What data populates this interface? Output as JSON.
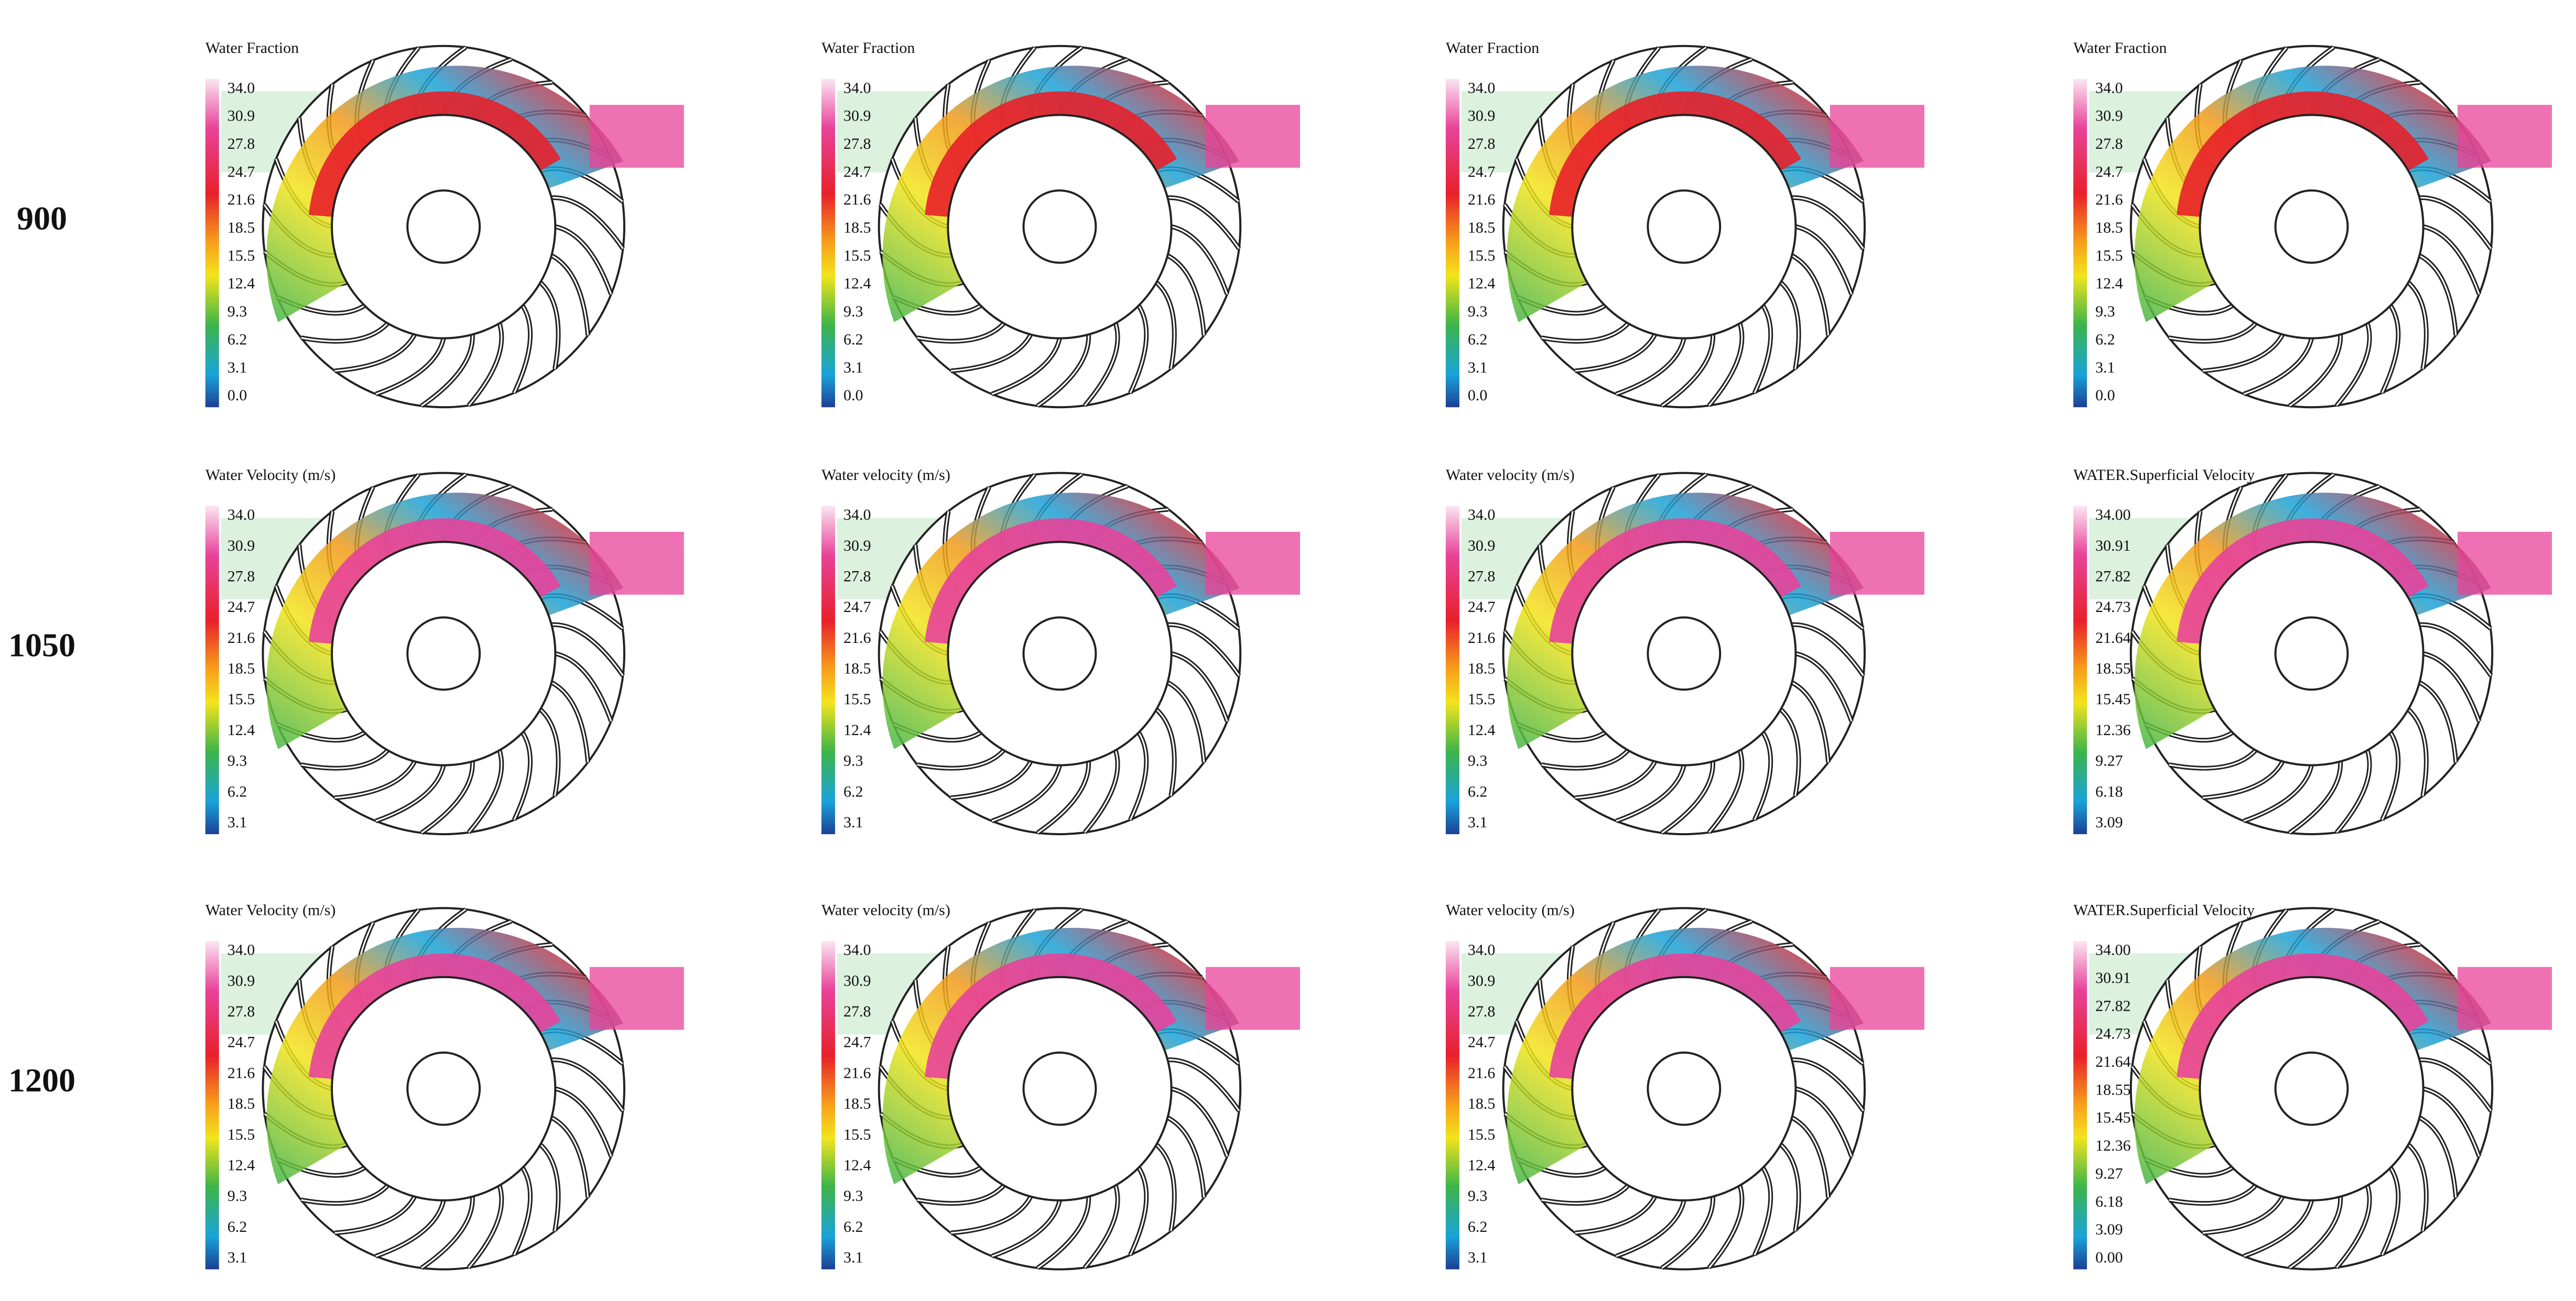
{
  "rows": [
    {
      "label": "900",
      "panels": [
        {
          "title": "Water Fraction",
          "ticks": [
            "34.0",
            "30.9",
            "27.8",
            "24.7",
            "21.6",
            "18.5",
            "15.5",
            "12.4",
            "9.3",
            "6.2",
            "3.1",
            "0.0"
          ]
        },
        {
          "title": "Water Fraction",
          "ticks": [
            "34.0",
            "30.9",
            "27.8",
            "24.7",
            "21.6",
            "18.5",
            "15.5",
            "12.4",
            "9.3",
            "6.2",
            "3.1",
            "0.0"
          ]
        },
        {
          "title": "Water Fraction",
          "ticks": [
            "34.0",
            "30.9",
            "27.8",
            "24.7",
            "21.6",
            "18.5",
            "15.5",
            "12.4",
            "9.3",
            "6.2",
            "3.1",
            "0.0"
          ]
        },
        {
          "title": "Water Fraction",
          "ticks": [
            "34.0",
            "30.9",
            "27.8",
            "24.7",
            "21.6",
            "18.5",
            "15.5",
            "12.4",
            "9.3",
            "6.2",
            "3.1",
            "0.0"
          ]
        }
      ]
    },
    {
      "label": "1050",
      "panels": [
        {
          "title": "Water Velocity (m/s)",
          "ticks": [
            "34.0",
            "30.9",
            "27.8",
            "24.7",
            "21.6",
            "18.5",
            "15.5",
            "12.4",
            "9.3",
            "6.2",
            "3.1"
          ]
        },
        {
          "title": "Water velocity (m/s)",
          "ticks": [
            "34.0",
            "30.9",
            "27.8",
            "24.7",
            "21.6",
            "18.5",
            "15.5",
            "12.4",
            "9.3",
            "6.2",
            "3.1"
          ]
        },
        {
          "title": "Water velocity (m/s)",
          "ticks": [
            "34.0",
            "30.9",
            "27.8",
            "24.7",
            "21.6",
            "18.5",
            "15.5",
            "12.4",
            "9.3",
            "6.2",
            "3.1"
          ]
        },
        {
          "title": "WATER.Superficial Velocity",
          "ticks": [
            "34.00",
            "30.91",
            "27.82",
            "24.73",
            "21.64",
            "18.55",
            "15.45",
            "12.36",
            "9.27",
            "6.18",
            "3.09"
          ]
        }
      ]
    },
    {
      "label": "1200",
      "panels": [
        {
          "title": "Water Velocity (m/s)",
          "ticks": [
            "34.0",
            "30.9",
            "27.8",
            "24.7",
            "21.6",
            "18.5",
            "15.5",
            "12.4",
            "9.3",
            "6.2",
            "3.1"
          ]
        },
        {
          "title": "Water velocity (m/s)",
          "ticks": [
            "34.0",
            "30.9",
            "27.8",
            "24.7",
            "21.6",
            "18.5",
            "15.5",
            "12.4",
            "9.3",
            "6.2",
            "3.1"
          ]
        },
        {
          "title": "Water velocity (m/s)",
          "ticks": [
            "34.0",
            "30.9",
            "27.8",
            "24.7",
            "21.6",
            "18.5",
            "15.5",
            "12.4",
            "9.3",
            "6.2",
            "3.1"
          ]
        },
        {
          "title": "WATER.Superficial Velocity",
          "ticks": [
            "34.00",
            "30.91",
            "27.82",
            "24.73",
            "21.64",
            "18.55",
            "15.45",
            "12.36",
            "9.27",
            "6.18",
            "3.09",
            "0.00"
          ]
        }
      ]
    }
  ]
}
